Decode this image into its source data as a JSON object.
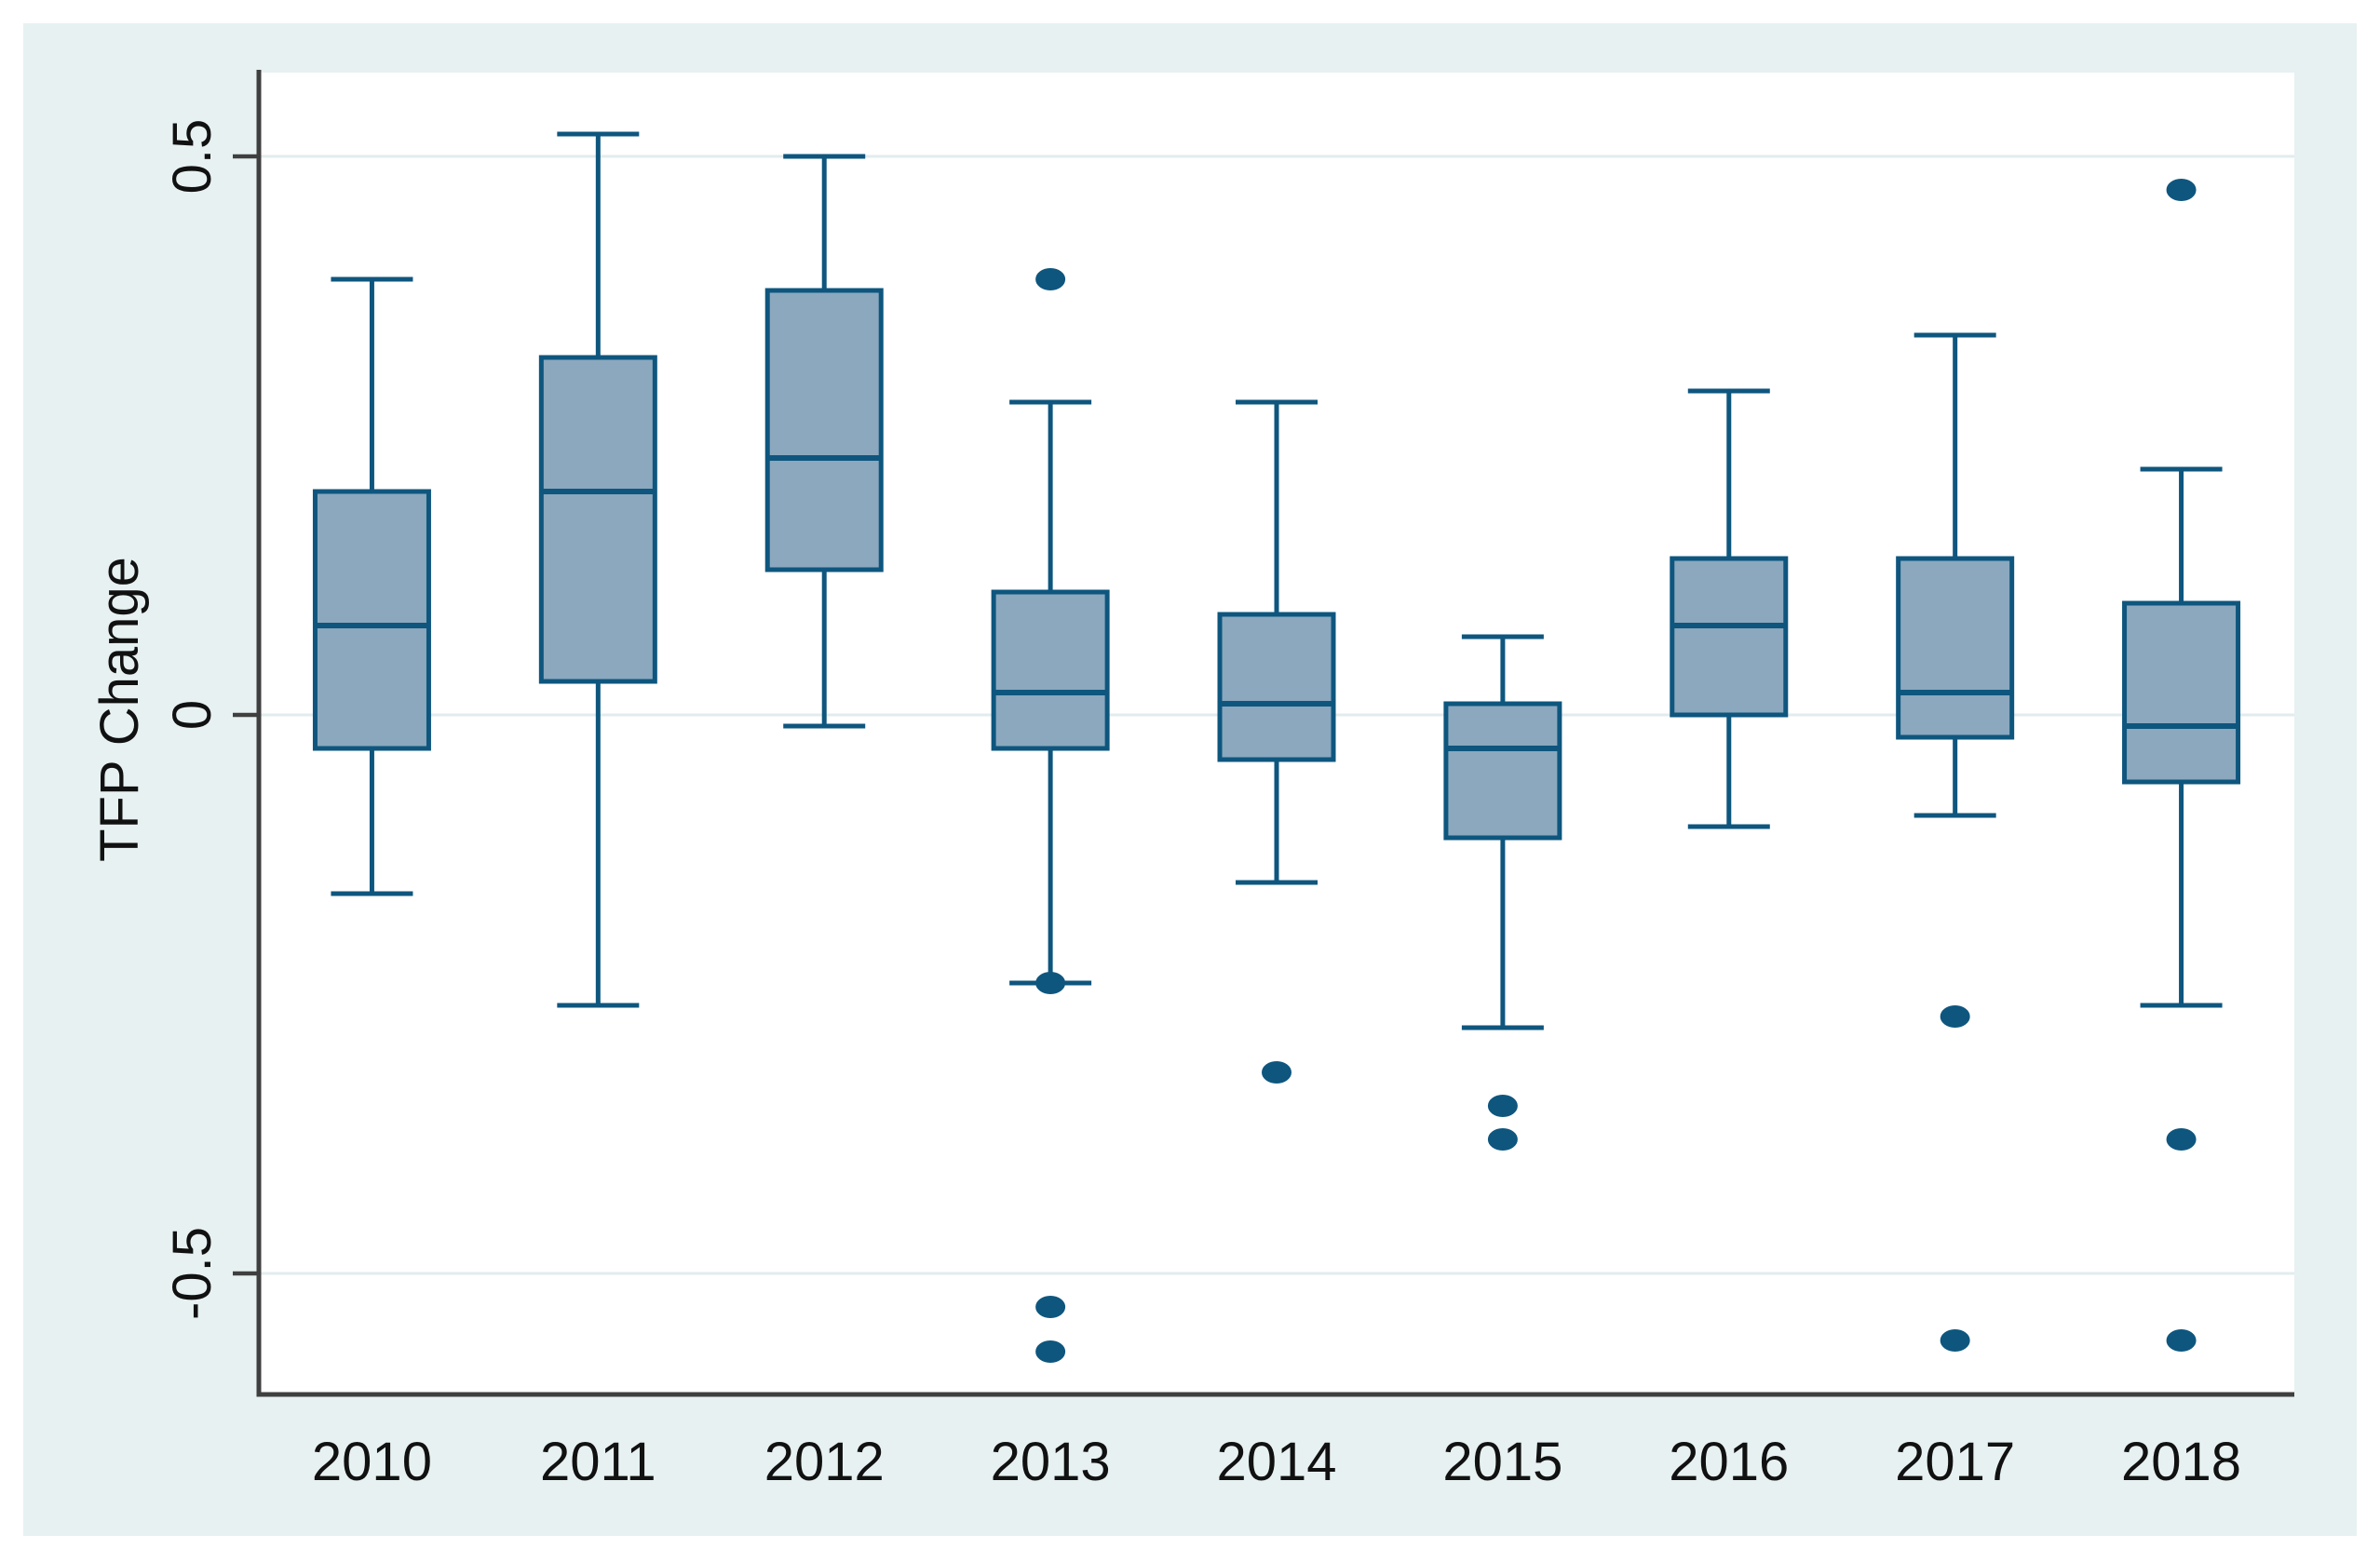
{
  "figure": {
    "kind": "box-and-whisker plot, single panel, no title, no legend"
  },
  "chart_data": {
    "type": "box",
    "title": "",
    "xlabel": "",
    "ylabel": "TFP Change",
    "categories": [
      "2010",
      "2011",
      "2012",
      "2013",
      "2014",
      "2015",
      "2016",
      "2017",
      "2018"
    ],
    "y_ticks": [
      {
        "value": 0.5,
        "label": "0.5"
      },
      {
        "value": 0,
        "label": "0"
      },
      {
        "value": -0.5,
        "label": "-0.5"
      }
    ],
    "ylim": [
      -0.61,
      0.58
    ],
    "grid": "horizontal-at-ticks",
    "legend": "none",
    "series": [
      {
        "category": "2010",
        "whisker_low": -0.16,
        "q1": -0.03,
        "median": 0.08,
        "q3": 0.2,
        "whisker_high": 0.39,
        "outliers": []
      },
      {
        "category": "2011",
        "whisker_low": -0.26,
        "q1": 0.03,
        "median": 0.2,
        "q3": 0.32,
        "whisker_high": 0.52,
        "outliers": []
      },
      {
        "category": "2012",
        "whisker_low": -0.01,
        "q1": 0.13,
        "median": 0.23,
        "q3": 0.38,
        "whisker_high": 0.5,
        "outliers": []
      },
      {
        "category": "2013",
        "whisker_low": -0.24,
        "q1": -0.03,
        "median": 0.02,
        "q3": 0.11,
        "whisker_high": 0.28,
        "outliers": [
          0.39,
          -0.24,
          -0.53,
          -0.57
        ]
      },
      {
        "category": "2014",
        "whisker_low": -0.15,
        "q1": -0.04,
        "median": 0.01,
        "q3": 0.09,
        "whisker_high": 0.28,
        "outliers": [
          -0.32
        ]
      },
      {
        "category": "2015",
        "whisker_low": -0.28,
        "q1": -0.11,
        "median": -0.03,
        "q3": 0.01,
        "whisker_high": 0.07,
        "outliers": [
          -0.35,
          -0.38
        ]
      },
      {
        "category": "2016",
        "whisker_low": -0.1,
        "q1": 0.0,
        "median": 0.08,
        "q3": 0.14,
        "whisker_high": 0.29,
        "outliers": []
      },
      {
        "category": "2017",
        "whisker_low": -0.09,
        "q1": -0.02,
        "median": 0.02,
        "q3": 0.14,
        "whisker_high": 0.34,
        "outliers": [
          -0.27,
          -0.56
        ]
      },
      {
        "category": "2018",
        "whisker_low": -0.26,
        "q1": -0.06,
        "median": -0.01,
        "q3": 0.1,
        "whisker_high": 0.22,
        "outliers": [
          0.47,
          -0.38,
          -0.56
        ]
      }
    ],
    "colors": {
      "panel_bg": "#e7f1f2",
      "plot_bg": "#ffffff",
      "gridline": "#e2ecee",
      "axis": "#3f3f3f",
      "box_fill": "#8ba8be",
      "box_stroke": "#0e567e",
      "text": "#111111"
    }
  }
}
